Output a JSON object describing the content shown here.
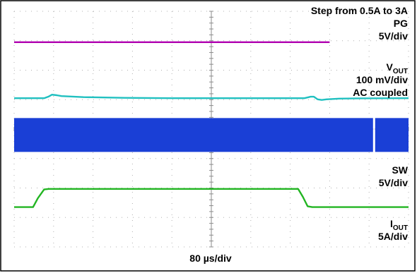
{
  "chart_data": {
    "type": "line",
    "title": "Step from 0.5A to 3A",
    "time_scale": "80 µs/div",
    "grid": "dotted",
    "divisions": {
      "x": 10,
      "y": 8
    },
    "traces": [
      {
        "name": "PG",
        "main": "PG",
        "sub": "",
        "scale": "5V/div",
        "coupling": "",
        "color": "#b000b0",
        "center_div": 6.95,
        "points": [
          [
            0,
            0
          ],
          [
            10,
            0
          ]
        ]
      },
      {
        "name": "VOUT",
        "main": "V",
        "sub": "OUT",
        "scale": "100 mV/div",
        "coupling": "AC coupled",
        "color": "#20c0c0",
        "center_div": 5.05,
        "points": [
          [
            0,
            0
          ],
          [
            0.95,
            0
          ],
          [
            1.1,
            0.06
          ],
          [
            1.2,
            0.12
          ],
          [
            1.35,
            0.1
          ],
          [
            1.5,
            0.07
          ],
          [
            2.2,
            0.035
          ],
          [
            3.5,
            0.01
          ],
          [
            5.0,
            0
          ],
          [
            9.2,
            0
          ],
          [
            9.4,
            0.05
          ],
          [
            9.5,
            0.05
          ],
          [
            9.62,
            -0.04
          ],
          [
            9.75,
            -0.06
          ],
          [
            9.9,
            -0.04
          ],
          [
            10.3,
            -0.015
          ],
          [
            11.0,
            -0.005
          ],
          [
            12.5,
            0
          ]
        ]
      },
      {
        "name": "SW",
        "main": "SW",
        "sub": "",
        "scale": "5V/div",
        "coupling": "",
        "color": "#1a3fd6",
        "center_div": 3.8,
        "band_div": 1.15,
        "change_div": 9.1
      },
      {
        "name": "IOUT",
        "main": "I",
        "sub": "OUT",
        "scale": "5A/div",
        "coupling": "",
        "color": "#22b522",
        "center_div": 1.35,
        "points": [
          [
            0,
            0
          ],
          [
            0.6,
            0
          ],
          [
            0.75,
            0.3
          ],
          [
            0.95,
            0.6
          ],
          [
            1.1,
            0.62
          ],
          [
            9.0,
            0.62
          ],
          [
            9.15,
            0.35
          ],
          [
            9.3,
            0.03
          ],
          [
            9.45,
            0
          ],
          [
            12.5,
            0
          ]
        ]
      }
    ]
  }
}
